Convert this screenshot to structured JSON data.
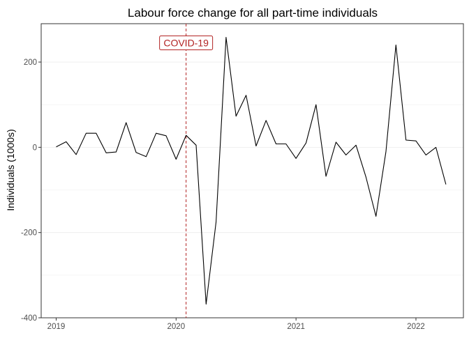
{
  "chart_data": {
    "type": "line",
    "title": "Labour force change for all part-time individuals",
    "xlabel": "",
    "ylabel": "Individuals (1000s)",
    "x_ticks": [
      "2019",
      "2020",
      "2021",
      "2022"
    ],
    "y_ticks": [
      200,
      0,
      -200,
      -400
    ],
    "ylim": [
      -400,
      290
    ],
    "xlim": [
      "2018-12",
      "2022-06"
    ],
    "grid": true,
    "legend": "none",
    "line_color": "#000000",
    "series": [
      {
        "x": [
          "2019-01",
          "2019-02",
          "2019-03",
          "2019-04",
          "2019-05",
          "2019-06",
          "2019-07",
          "2019-08",
          "2019-09",
          "2019-10",
          "2019-11",
          "2019-12",
          "2020-01",
          "2020-02",
          "2020-03",
          "2020-04",
          "2020-05",
          "2020-06",
          "2020-07",
          "2020-08",
          "2020-09",
          "2020-10",
          "2020-11",
          "2020-12",
          "2021-01",
          "2021-02",
          "2021-03",
          "2021-04",
          "2021-05",
          "2021-06",
          "2021-07",
          "2021-08",
          "2021-09",
          "2021-10",
          "2021-11",
          "2021-12",
          "2022-01",
          "2022-02",
          "2022-03",
          "2022-04"
        ],
        "values": [
          1,
          13,
          -17,
          33,
          33,
          -13,
          -11,
          58,
          -12,
          -22,
          33,
          27,
          -28,
          28,
          5,
          -368,
          -175,
          258,
          73,
          122,
          3,
          63,
          8,
          8,
          -26,
          10,
          100,
          -68,
          12,
          -18,
          5,
          -70,
          -162,
          -10,
          240,
          17,
          15,
          -18,
          0,
          -87
        ]
      }
    ],
    "annotation": {
      "label": "COVID-19",
      "x": "2020-02",
      "y_label": 245,
      "color": "#b22222"
    }
  }
}
